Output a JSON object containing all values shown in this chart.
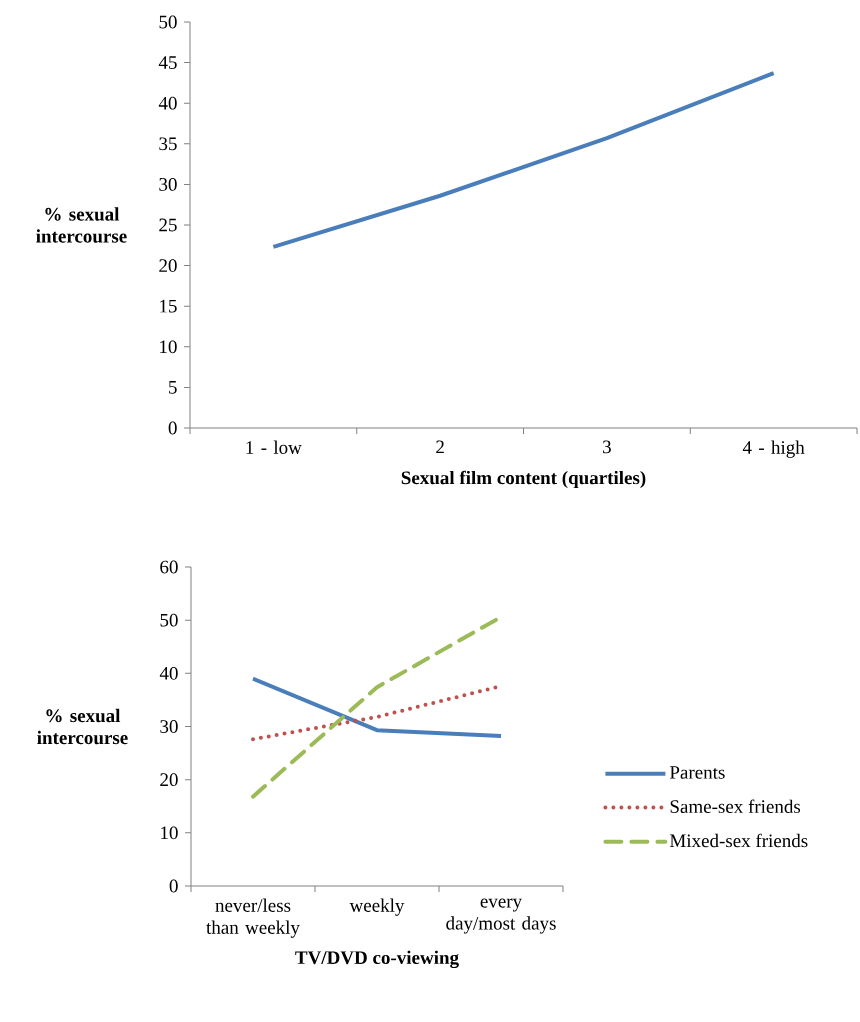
{
  "chart_data": [
    {
      "type": "line",
      "categories": [
        "1 - low",
        "2",
        "3",
        "4 - high"
      ],
      "xlabel": "Sexual film content (quartiles)",
      "ylabel": "%  sexual intercourse",
      "ylim": [
        0,
        50
      ],
      "yticks": [
        0,
        5,
        10,
        15,
        20,
        25,
        30,
        35,
        40,
        45,
        50
      ],
      "series": [
        {
          "color": "#4a7ebb",
          "line_style": "solid",
          "values": [
            22.3,
            28.6,
            35.7,
            43.7
          ]
        }
      ]
    },
    {
      "type": "line",
      "categories": [
        "never/less than weekly",
        "weekly",
        "every day/most days"
      ],
      "xlabel": "TV/DVD co-viewing",
      "ylabel": "% sexual intercourse",
      "ylim": [
        0,
        60
      ],
      "yticks": [
        0,
        10,
        20,
        30,
        40,
        50,
        60
      ],
      "legend": "right",
      "series": [
        {
          "name": "Parents",
          "color": "#4a7ebb",
          "line_style": "solid",
          "values": [
            39,
            29.3,
            28.2
          ]
        },
        {
          "name": "Same-sex friends",
          "color": "#c0504d",
          "line_style": "dotted",
          "values": [
            27.6,
            31.8,
            37.6
          ]
        },
        {
          "name": "Mixed-sex friends",
          "color": "#9bbb59",
          "line_style": "dashed",
          "values": [
            16.8,
            37.4,
            50.6
          ]
        }
      ]
    }
  ]
}
